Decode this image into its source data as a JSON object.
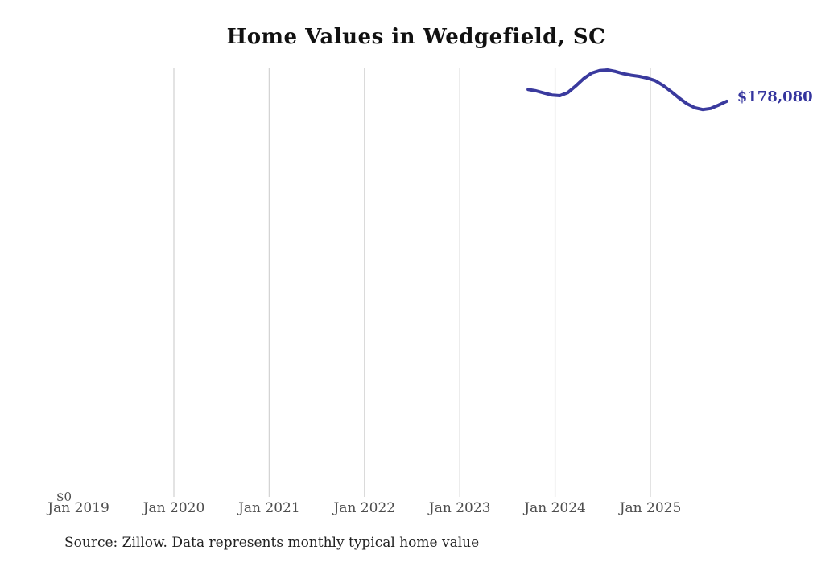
{
  "page": {
    "background_color": "#ffffff"
  },
  "chart": {
    "title": "Home Values in Wedgefield, SC",
    "y_zero_label": "$0",
    "end_value_label": "$178,080",
    "source_note": "Source: Zillow. Data represents monthly typical home value",
    "colors": {
      "line": "#3a3a9e",
      "end_label": "#34349e",
      "gridline": "#d4d4d4",
      "tick_label": "#4d4d4d",
      "title": "#111111",
      "source": "#222222"
    }
  },
  "chart_data": {
    "type": "line",
    "title": "Home Values in Wedgefield, SC",
    "xlabel": "",
    "ylabel": "",
    "ylim": [
      0,
      193000
    ],
    "grid": "vertical-only",
    "legend": false,
    "x_ticks": [
      {
        "label": "Jan 2019",
        "gridline": false
      },
      {
        "label": "Jan 2020",
        "gridline": true
      },
      {
        "label": "Jan 2021",
        "gridline": true
      },
      {
        "label": "Jan 2022",
        "gridline": true
      },
      {
        "label": "Jan 2023",
        "gridline": true
      },
      {
        "label": "Jan 2024",
        "gridline": true
      },
      {
        "label": "Jan 2025",
        "gridline": true
      }
    ],
    "annotations": [
      {
        "text": "$178,080",
        "position": "line-end"
      },
      {
        "text": "$0",
        "position": "y-axis-zero"
      }
    ],
    "series": [
      {
        "name": "Monthly typical home value",
        "points": [
          {
            "date": "2023-09",
            "value": 183400
          },
          {
            "date": "2023-10",
            "value": 182800
          },
          {
            "date": "2023-11",
            "value": 181800
          },
          {
            "date": "2023-12",
            "value": 180900
          },
          {
            "date": "2024-01",
            "value": 180600
          },
          {
            "date": "2024-02",
            "value": 182000
          },
          {
            "date": "2024-03",
            "value": 185000
          },
          {
            "date": "2024-04",
            "value": 188300
          },
          {
            "date": "2024-05",
            "value": 190800
          },
          {
            "date": "2024-06",
            "value": 191900
          },
          {
            "date": "2024-07",
            "value": 192200
          },
          {
            "date": "2024-08",
            "value": 191500
          },
          {
            "date": "2024-09",
            "value": 190500
          },
          {
            "date": "2024-10",
            "value": 189800
          },
          {
            "date": "2024-11",
            "value": 189300
          },
          {
            "date": "2024-12",
            "value": 188500
          },
          {
            "date": "2025-01",
            "value": 187400
          },
          {
            "date": "2025-02",
            "value": 185200
          },
          {
            "date": "2025-03",
            "value": 182500
          },
          {
            "date": "2025-04",
            "value": 179600
          },
          {
            "date": "2025-05",
            "value": 177000
          },
          {
            "date": "2025-06",
            "value": 175200
          },
          {
            "date": "2025-07",
            "value": 174400
          },
          {
            "date": "2025-08",
            "value": 174900
          },
          {
            "date": "2025-09",
            "value": 176400
          },
          {
            "date": "2025-10",
            "value": 178080
          }
        ]
      }
    ]
  }
}
